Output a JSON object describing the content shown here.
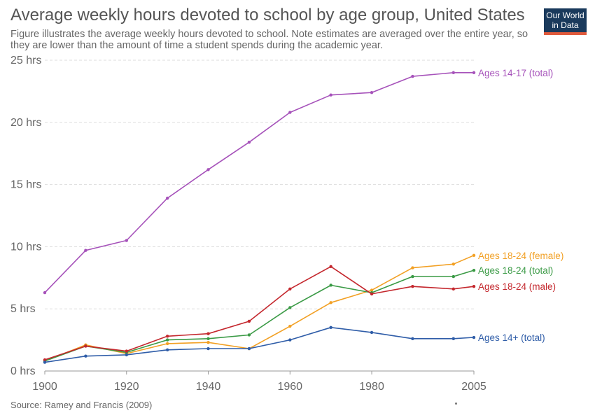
{
  "header": {
    "title": "Average weekly hours devoted to school by age group, United States",
    "subtitle": "Figure illustrates the average weekly hours devoted to school. Note estimates are averaged over the entire year, so they are lower than the amount of time a student spends during the academic year."
  },
  "logo": {
    "line1": "Our World",
    "line2": "in Data",
    "bg_color": "#1a3a5c",
    "accent_color": "#e05a3c"
  },
  "footer": {
    "source": "Source: Ramey and Francis (2009)"
  },
  "chart_data": {
    "type": "line",
    "title": "Average weekly hours devoted to school by age group, United States",
    "xlabel": "",
    "ylabel": "",
    "xlim": [
      1900,
      2005
    ],
    "ylim": [
      0,
      25
    ],
    "x_ticks": [
      1900,
      1920,
      1940,
      1960,
      1980,
      2005
    ],
    "y_ticks": [
      {
        "value": 0,
        "label": "0 hrs"
      },
      {
        "value": 5,
        "label": "5 hrs"
      },
      {
        "value": 10,
        "label": "10 hrs"
      },
      {
        "value": 15,
        "label": "15 hrs"
      },
      {
        "value": 20,
        "label": "20 hrs"
      },
      {
        "value": 25,
        "label": "25 hrs"
      }
    ],
    "grid": true,
    "legend": "inline labels at line ends (right)",
    "x": [
      1900,
      1910,
      1920,
      1930,
      1940,
      1950,
      1960,
      1970,
      1980,
      1990,
      2000,
      2005
    ],
    "series": [
      {
        "name": "Ages 14-17 (total)",
        "color": "#a652ba",
        "values": [
          6.3,
          9.7,
          10.5,
          13.9,
          16.2,
          18.4,
          20.8,
          22.2,
          22.4,
          23.7,
          24.0,
          24.0
        ]
      },
      {
        "name": "Ages 18-24 (female)",
        "color": "#f2a024",
        "values": [
          0.8,
          2.1,
          1.4,
          2.2,
          2.3,
          1.8,
          3.6,
          5.5,
          6.5,
          8.3,
          8.6,
          9.3
        ]
      },
      {
        "name": "Ages 18-24 (total)",
        "color": "#3a9a45",
        "values": [
          0.8,
          2.0,
          1.5,
          2.5,
          2.6,
          2.9,
          5.1,
          6.9,
          6.3,
          7.6,
          7.6,
          8.1
        ]
      },
      {
        "name": "Ages 18-24 (male)",
        "color": "#c4272d",
        "values": [
          0.9,
          2.0,
          1.6,
          2.8,
          3.0,
          4.0,
          6.6,
          8.4,
          6.2,
          6.8,
          6.6,
          6.8
        ]
      },
      {
        "name": "Ages 14+ (total)",
        "color": "#2f5da8",
        "values": [
          0.7,
          1.2,
          1.3,
          1.7,
          1.8,
          1.8,
          2.5,
          3.5,
          3.1,
          2.6,
          2.6,
          2.7
        ]
      }
    ]
  }
}
